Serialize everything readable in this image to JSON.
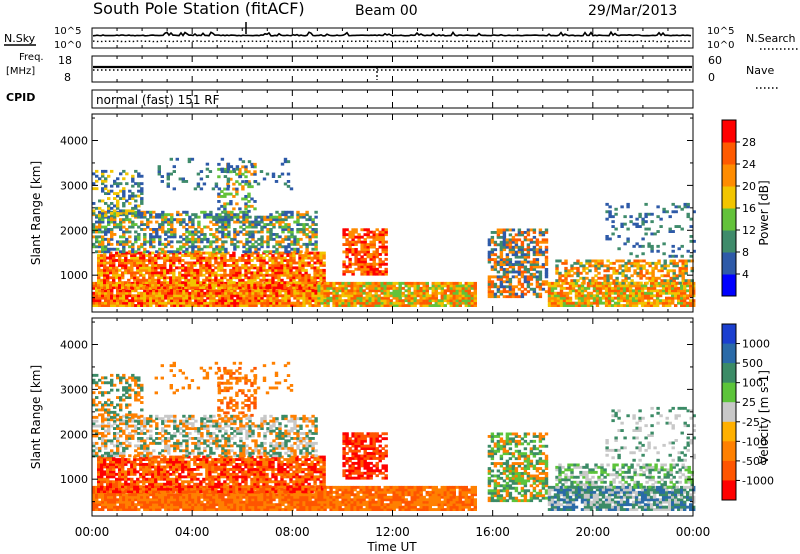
{
  "header": {
    "station": "South Pole Station (fitACF)",
    "beam": "Beam 00",
    "date": "29/Mar/2013"
  },
  "chart_data": [
    {
      "type": "line",
      "name": "noise-panel",
      "left_label": "N.Sky",
      "right_label": "N.Search",
      "left_ticks": [
        "10^5",
        "10^0"
      ],
      "right_ticks": [
        "10^5",
        "10^0"
      ]
    },
    {
      "type": "line",
      "name": "frequency-panel",
      "left_label_lines": [
        "Freq.",
        "[MHz]"
      ],
      "right_label": "Nave",
      "left_ticks": [
        18,
        8
      ],
      "right_ticks": [
        60,
        0
      ]
    },
    {
      "type": "table",
      "name": "cpid-panel",
      "label": "CPID",
      "text": "normal (fast) 151 RF"
    },
    {
      "type": "heatmap",
      "name": "power-panel",
      "ylabel": "Slant Range [km]",
      "yticks": [
        1000,
        2000,
        3000,
        4000
      ],
      "ylim": [
        180,
        4590
      ],
      "colorbar_label": "Power [dB]",
      "colorbar_ticks": [
        4,
        8,
        12,
        16,
        20,
        24,
        28
      ],
      "colorbar_range": [
        0,
        32
      ],
      "colors": [
        "#0000ff",
        "#2e5aa8",
        "#3f8b6b",
        "#63c23a",
        "#f2c500",
        "#ff8c00",
        "#ff5a00",
        "#ff0000"
      ]
    },
    {
      "type": "heatmap",
      "name": "velocity-panel",
      "ylabel": "Slant Range [km]",
      "yticks": [
        1000,
        2000,
        3000,
        4000
      ],
      "ylim": [
        180,
        4590
      ],
      "colorbar_label": "Velocity [m s-1]",
      "colorbar_ticks": [
        "1000",
        "500",
        "100",
        "25",
        "-25",
        "-100",
        "-500",
        "-1000"
      ],
      "colors": [
        "#1b3fcf",
        "#2a6aa8",
        "#3b8b66",
        "#5cc43a",
        "#c8c8c8",
        "#ffb000",
        "#ff8000",
        "#ff5500",
        "#ff0000"
      ]
    }
  ],
  "time_axis": {
    "xlabel": "Time UT",
    "ticks": [
      "00:00",
      "04:00",
      "08:00",
      "12:00",
      "16:00",
      "20:00",
      "00:00"
    ]
  }
}
